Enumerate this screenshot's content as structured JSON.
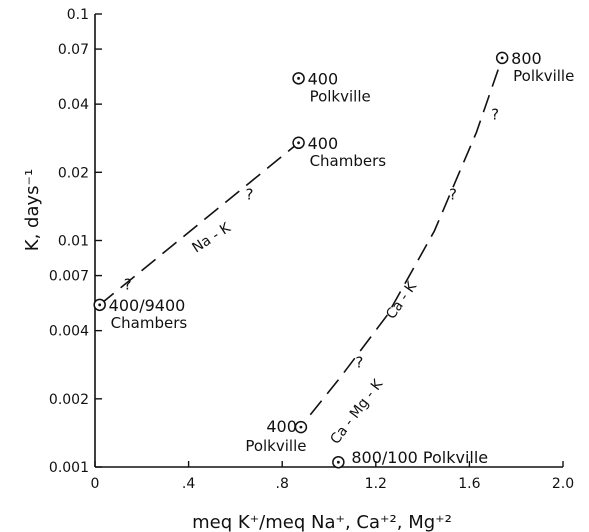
{
  "chart_data": {
    "type": "scatter",
    "title": "",
    "xlabel": "meq K⁺/meq Na⁺, Ca⁺², Mg⁺²",
    "ylabel": "K, days⁻¹",
    "xlim": [
      0,
      2.0
    ],
    "ylim": [
      0.001,
      0.1
    ],
    "yscale": "log",
    "grid": false,
    "x_ticks": [
      "0",
      ".4",
      ".8",
      "1.2",
      "1.6",
      "2.0"
    ],
    "y_ticks": [
      "0.001",
      "0.002",
      "0.004",
      "0.007",
      "0.01",
      "0.02",
      "0.04",
      "0.07",
      "0.1"
    ],
    "points": [
      {
        "x": 0.02,
        "y": 0.0052,
        "label": [
          "400/9400",
          "Chambers"
        ]
      },
      {
        "x": 0.87,
        "y": 0.027,
        "label": [
          "400",
          "Chambers"
        ]
      },
      {
        "x": 0.87,
        "y": 0.052,
        "label": [
          "400",
          "Polkville"
        ]
      },
      {
        "x": 0.88,
        "y": 0.0015,
        "label": [
          "400",
          "Polkville"
        ]
      },
      {
        "x": 1.74,
        "y": 0.064,
        "label": [
          "800",
          "Polkville"
        ]
      },
      {
        "x": 1.04,
        "y": 0.00105,
        "label": [
          "800/100 Polkville"
        ]
      }
    ],
    "series": [
      {
        "name": "Na-K",
        "x": [
          0.02,
          0.87
        ],
        "y": [
          0.0052,
          0.027
        ],
        "style": "dashed"
      },
      {
        "name": "Ca-K",
        "x": [
          0.92,
          1.05,
          1.25,
          1.45,
          1.63,
          1.74
        ],
        "y": [
          0.0017,
          0.0025,
          0.0047,
          0.011,
          0.03,
          0.064
        ],
        "style": "dashed"
      },
      {
        "name": "Ca-Mg-K",
        "x": [],
        "y": [],
        "style": "label-only"
      }
    ],
    "question_marks": [
      {
        "x": 0.14,
        "y": 0.0064
      },
      {
        "x": 0.66,
        "y": 0.016
      },
      {
        "x": 1.13,
        "y": 0.0029
      },
      {
        "x": 1.53,
        "y": 0.016
      },
      {
        "x": 1.71,
        "y": 0.036
      }
    ]
  },
  "labels": {
    "na_k": "Na - K",
    "ca_k": "Ca - K",
    "ca_mg_k": "Ca - Mg - K",
    "question": "?"
  }
}
